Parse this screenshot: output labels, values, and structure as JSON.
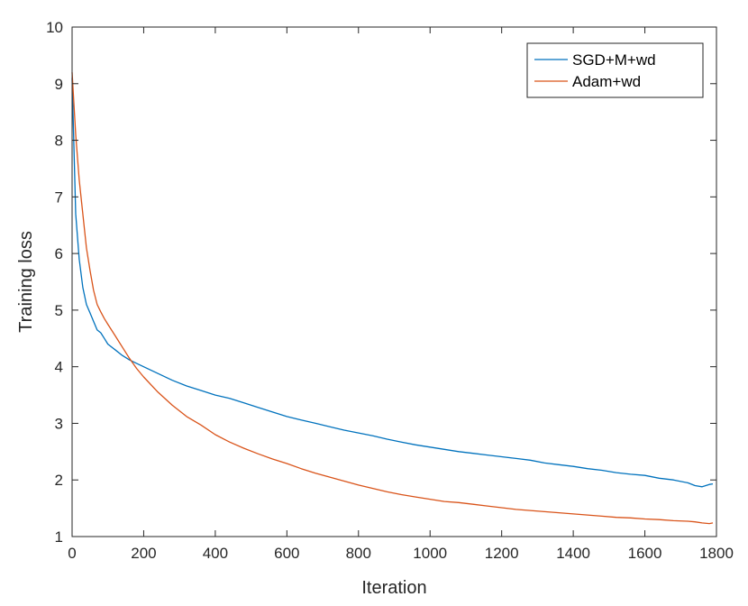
{
  "chart_data": {
    "type": "line",
    "title": "",
    "xlabel": "Iteration",
    "ylabel": "Training loss",
    "xlim": [
      0,
      1800
    ],
    "ylim": [
      1,
      10
    ],
    "xticks": [
      0,
      200,
      400,
      600,
      800,
      1000,
      1200,
      1400,
      1600,
      1800
    ],
    "yticks": [
      1,
      2,
      3,
      4,
      5,
      6,
      7,
      8,
      9,
      10
    ],
    "xtick_labels": [
      "0",
      "200",
      "400",
      "600",
      "800",
      "1000",
      "1200",
      "1400",
      "1600",
      "1800"
    ],
    "ytick_labels": [
      "1",
      "2",
      "3",
      "4",
      "5",
      "6",
      "7",
      "8",
      "9",
      "10"
    ],
    "grid": false,
    "legend_position": "top-right",
    "series": [
      {
        "name": "SGD+M+wd",
        "color": "#0072BD",
        "x": [
          0,
          10,
          20,
          30,
          40,
          50,
          60,
          70,
          80,
          90,
          100,
          120,
          140,
          160,
          180,
          200,
          240,
          280,
          320,
          360,
          400,
          440,
          480,
          520,
          560,
          600,
          640,
          680,
          720,
          760,
          800,
          840,
          880,
          920,
          960,
          1000,
          1040,
          1080,
          1120,
          1160,
          1200,
          1240,
          1280,
          1320,
          1360,
          1400,
          1440,
          1480,
          1520,
          1560,
          1600,
          1640,
          1680,
          1720,
          1740,
          1760,
          1780,
          1790
        ],
        "y": [
          9.1,
          6.7,
          5.9,
          5.4,
          5.1,
          4.95,
          4.8,
          4.65,
          4.6,
          4.5,
          4.4,
          4.3,
          4.2,
          4.12,
          4.06,
          4.0,
          3.88,
          3.76,
          3.66,
          3.58,
          3.5,
          3.44,
          3.36,
          3.28,
          3.2,
          3.12,
          3.06,
          3.0,
          2.94,
          2.88,
          2.83,
          2.78,
          2.72,
          2.67,
          2.62,
          2.58,
          2.54,
          2.5,
          2.47,
          2.44,
          2.41,
          2.38,
          2.35,
          2.3,
          2.27,
          2.24,
          2.2,
          2.17,
          2.13,
          2.1,
          2.08,
          2.03,
          2.0,
          1.95,
          1.9,
          1.88,
          1.92,
          1.93
        ]
      },
      {
        "name": "Adam+wd",
        "color": "#D95319",
        "x": [
          0,
          10,
          20,
          30,
          40,
          50,
          60,
          70,
          80,
          90,
          100,
          120,
          140,
          160,
          180,
          200,
          240,
          280,
          320,
          360,
          400,
          440,
          480,
          520,
          560,
          600,
          640,
          680,
          720,
          760,
          800,
          840,
          880,
          920,
          960,
          1000,
          1040,
          1080,
          1120,
          1160,
          1200,
          1240,
          1280,
          1320,
          1360,
          1400,
          1440,
          1480,
          1520,
          1560,
          1600,
          1640,
          1680,
          1720,
          1740,
          1760,
          1780,
          1790
        ],
        "y": [
          9.2,
          8.1,
          7.3,
          6.7,
          6.1,
          5.7,
          5.35,
          5.1,
          4.97,
          4.85,
          4.75,
          4.55,
          4.35,
          4.15,
          3.97,
          3.82,
          3.55,
          3.32,
          3.12,
          2.97,
          2.8,
          2.67,
          2.56,
          2.46,
          2.37,
          2.29,
          2.2,
          2.12,
          2.05,
          1.98,
          1.91,
          1.85,
          1.79,
          1.74,
          1.7,
          1.66,
          1.62,
          1.6,
          1.57,
          1.54,
          1.51,
          1.48,
          1.46,
          1.44,
          1.42,
          1.4,
          1.38,
          1.36,
          1.34,
          1.33,
          1.31,
          1.3,
          1.28,
          1.27,
          1.26,
          1.24,
          1.23,
          1.24
        ]
      }
    ]
  }
}
